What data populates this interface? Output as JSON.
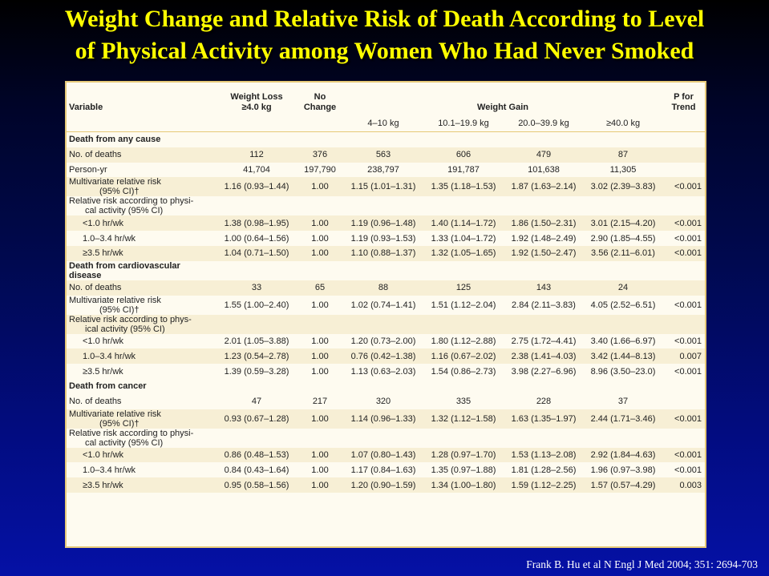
{
  "title": {
    "line1": "Weight Change and Relative Risk of Death According to Level",
    "line2": "of Physical Activity among Women Who Had Never Smoked"
  },
  "table": {
    "headers": {
      "variable": "Variable",
      "weight_loss": "Weight Loss",
      "weight_loss_sub": "≥4.0 kg",
      "no_change": "No",
      "no_change_sub": "Change",
      "weight_gain": "Weight Gain",
      "p_trend_1": "P for",
      "p_trend_2": "Trend",
      "gain_cols": [
        "4–10 kg",
        "10.1–19.9 kg",
        "20.0–39.9 kg",
        "≥40.0 kg"
      ]
    },
    "rows": [
      {
        "type": "section",
        "label": "Death from any cause"
      },
      {
        "type": "data",
        "shade": true,
        "label": "No. of deaths",
        "values": [
          "112",
          "376",
          "563",
          "606",
          "479",
          "87",
          ""
        ]
      },
      {
        "type": "data",
        "shade": false,
        "label": "Person-yr",
        "values": [
          "41,704",
          "197,790",
          "238,797",
          "191,787",
          "101,638",
          "11,305",
          ""
        ]
      },
      {
        "type": "data2",
        "shade": true,
        "label": "Multivariate relative risk",
        "label2": "(95% CI)†",
        "values": [
          "1.16 (0.93–1.44)",
          "1.00",
          "1.15 (1.01–1.31)",
          "1.35 (1.18–1.53)",
          "1.87 (1.63–2.14)",
          "3.02 (2.39–3.83)",
          "<0.001"
        ]
      },
      {
        "type": "text2",
        "shade": false,
        "label": "Relative risk according to physi-",
        "label2": "cal activity (95% CI)"
      },
      {
        "type": "sub",
        "shade": true,
        "label": "<1.0 hr/wk",
        "values": [
          "1.38 (0.98–1.95)",
          "1.00",
          "1.19 (0.96–1.48)",
          "1.40 (1.14–1.72)",
          "1.86 (1.50–2.31)",
          "3.01 (2.15–4.20)",
          "<0.001"
        ]
      },
      {
        "type": "sub",
        "shade": false,
        "label": "1.0–3.4 hr/wk",
        "values": [
          "1.00 (0.64–1.56)",
          "1.00",
          "1.19 (0.93–1.53)",
          "1.33 (1.04–1.72)",
          "1.92 (1.48–2.49)",
          "2.90 (1.85–4.55)",
          "<0.001"
        ]
      },
      {
        "type": "sub",
        "shade": true,
        "label": "≥3.5 hr/wk",
        "values": [
          "1.04 (0.71–1.50)",
          "1.00",
          "1.10 (0.88–1.37)",
          "1.32 (1.05–1.65)",
          "1.92 (1.50–2.47)",
          "3.56 (2.11–6.01)",
          "<0.001"
        ]
      },
      {
        "type": "section2",
        "label": "Death from cardiovascular",
        "label2": "disease"
      },
      {
        "type": "data",
        "shade": true,
        "label": "No. of deaths",
        "values": [
          "33",
          "65",
          "88",
          "125",
          "143",
          "24",
          ""
        ]
      },
      {
        "type": "data2",
        "shade": false,
        "label": "Multivariate relative risk",
        "label2": "(95% CI)†",
        "values": [
          "1.55 (1.00–2.40)",
          "1.00",
          "1.02 (0.74–1.41)",
          "1.51 (1.12–2.04)",
          "2.84 (2.11–3.83)",
          "4.05 (2.52–6.51)",
          "<0.001"
        ]
      },
      {
        "type": "text2",
        "shade": true,
        "label": "Relative risk according to phys-",
        "label2": "ical activity (95% CI)"
      },
      {
        "type": "sub",
        "shade": false,
        "label": "<1.0 hr/wk",
        "values": [
          "2.01 (1.05–3.88)",
          "1.00",
          "1.20 (0.73–2.00)",
          "1.80 (1.12–2.88)",
          "2.75 (1.72–4.41)",
          "3.40 (1.66–6.97)",
          "<0.001"
        ]
      },
      {
        "type": "sub",
        "shade": true,
        "label": "1.0–3.4 hr/wk",
        "values": [
          "1.23 (0.54–2.78)",
          "1.00",
          "0.76 (0.42–1.38)",
          "1.16 (0.67–2.02)",
          "2.38 (1.41–4.03)",
          "3.42 (1.44–8.13)",
          "0.007"
        ]
      },
      {
        "type": "sub",
        "shade": false,
        "label": "≥3.5 hr/wk",
        "values": [
          "1.39 (0.59–3.28)",
          "1.00",
          "1.13 (0.63–2.03)",
          "1.54 (0.86–2.73)",
          "3.98 (2.27–6.96)",
          "8.96 (3.50–23.0)",
          "<0.001"
        ]
      },
      {
        "type": "section",
        "label": "Death from cancer"
      },
      {
        "type": "data",
        "shade": false,
        "label": "No. of deaths",
        "values": [
          "47",
          "217",
          "320",
          "335",
          "228",
          "37",
          ""
        ]
      },
      {
        "type": "data2",
        "shade": true,
        "label": "Multivariate relative risk",
        "label2": "(95% CI)†",
        "values": [
          "0.93 (0.67–1.28)",
          "1.00",
          "1.14 (0.96–1.33)",
          "1.32 (1.12–1.58)",
          "1.63 (1.35–1.97)",
          "2.44 (1.71–3.46)",
          "<0.001"
        ]
      },
      {
        "type": "text2",
        "shade": false,
        "label": "Relative risk according to physi-",
        "label2": "cal activity (95% CI)"
      },
      {
        "type": "sub",
        "shade": true,
        "label": "<1.0 hr/wk",
        "values": [
          "0.86 (0.48–1.53)",
          "1.00",
          "1.07 (0.80–1.43)",
          "1.28 (0.97–1.70)",
          "1.53 (1.13–2.08)",
          "2.92 (1.84–4.63)",
          "<0.001"
        ]
      },
      {
        "type": "sub",
        "shade": false,
        "label": "1.0–3.4 hr/wk",
        "values": [
          "0.84 (0.43–1.64)",
          "1.00",
          "1.17 (0.84–1.63)",
          "1.35 (0.97–1.88)",
          "1.81 (1.28–2.56)",
          "1.96 (0.97–3.98)",
          "<0.001"
        ]
      },
      {
        "type": "sub",
        "shade": true,
        "label": "≥3.5 hr/wk",
        "values": [
          "0.95 (0.58–1.56)",
          "1.00",
          "1.20 (0.90–1.59)",
          "1.34 (1.00–1.80)",
          "1.59 (1.12–2.25)",
          "1.57 (0.57–4.29)",
          "0.003"
        ]
      }
    ]
  },
  "citation": "Frank B. Hu et al N Engl J Med 2004; 351: 2694-703",
  "colors": {
    "title": "#ffff00",
    "panel": "#fefbf0",
    "panel_border": "#e6c978",
    "row_shade": "#f7efd5"
  }
}
